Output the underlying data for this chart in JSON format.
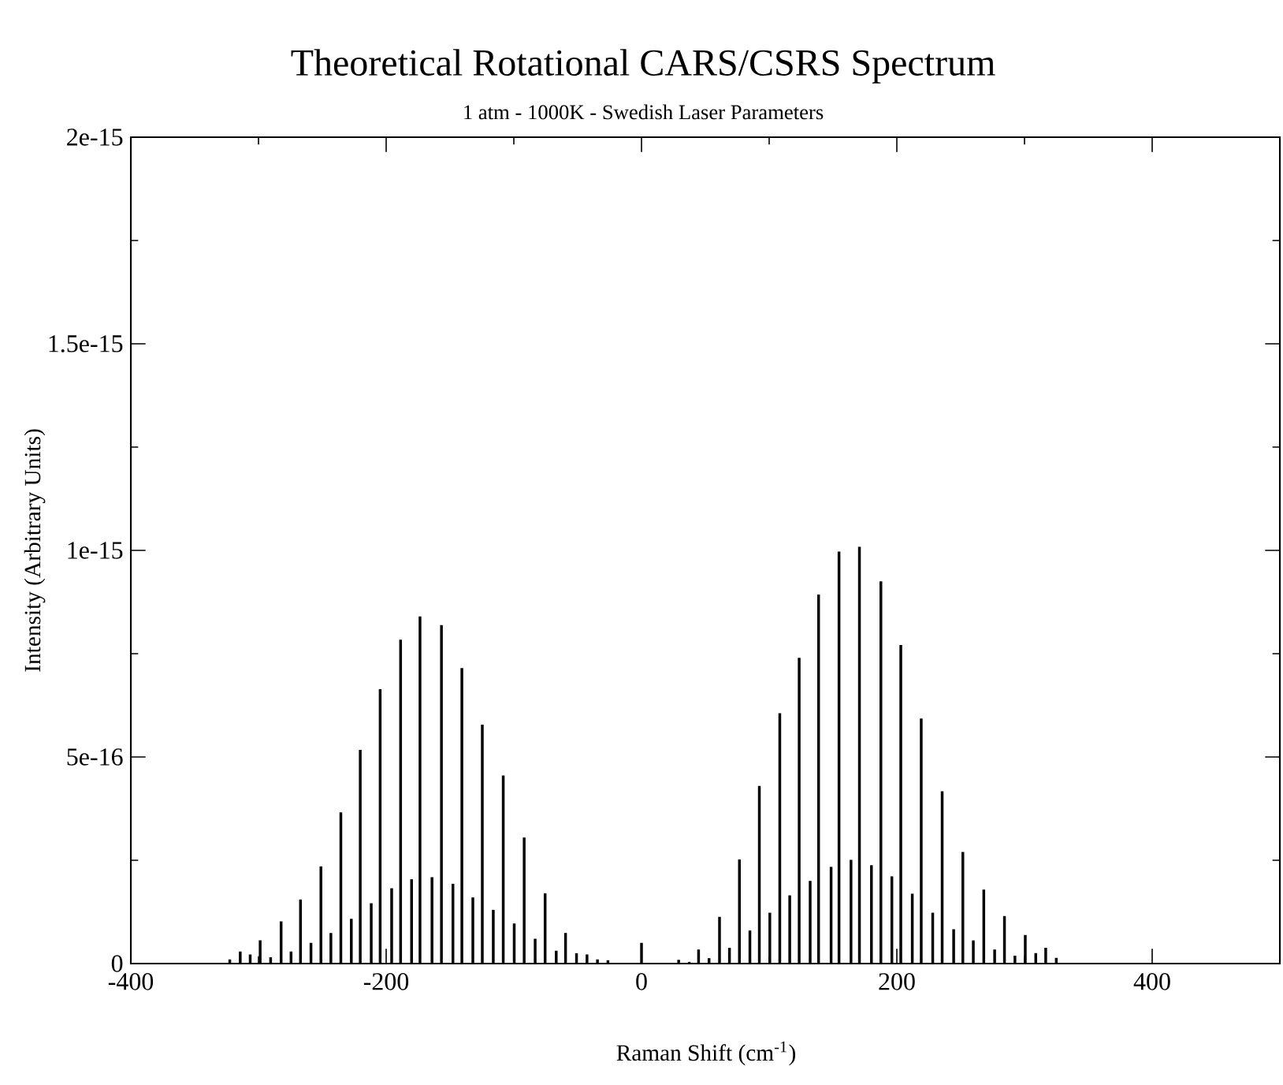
{
  "chart_data": {
    "type": "bar",
    "title": "Theoretical Rotational CARS/CSRS Spectrum",
    "subtitle": "1 atm - 1000K - Swedish Laser Parameters",
    "xlabel": "Raman Shift (cm$^{-1}$)",
    "ylabel": "Intensity (Arbitrary Units)",
    "color": "#000000",
    "x": [
      -322.5,
      -314.3,
      -306.5,
      -298.7,
      -290.5,
      -282.3,
      -274.5,
      -267.1,
      -258.9,
      -251.1,
      -243.3,
      -235.5,
      -227.3,
      -220.3,
      -211.7,
      -204.7,
      -195.7,
      -188.7,
      -180.1,
      -173.5,
      -164.1,
      -156.7,
      -147.7,
      -140.7,
      -132.1,
      -124.7,
      -116.1,
      -108.3,
      -99.7,
      -91.9,
      -83.3,
      -75.5,
      -66.8,
      -59.5,
      -50.9,
      -42.7,
      -34.5,
      -26.3,
      0,
      29.1,
      37.4,
      44.7,
      52.9,
      61.1,
      68.9,
      76.7,
      84.9,
      92.3,
      100.5,
      108.3,
      116.1,
      123.5,
      132.1,
      138.7,
      148.5,
      154.7,
      164.1,
      170.7,
      180.1,
      187.5,
      196.1,
      203.1,
      212.1,
      219.1,
      228.1,
      235.5,
      244.5,
      251.7,
      259.9,
      268.1,
      276.6,
      284.3,
      292.5,
      300.6,
      308.8,
      316.6,
      324.9
    ],
    "values": [
      1e-17,
      2.9e-17,
      2.2e-17,
      5.6e-17,
      1.5e-17,
      1.02e-16,
      2.9e-17,
      1.55e-16,
      5e-17,
      2.35e-16,
      7.4e-17,
      3.66e-16,
      1.08e-16,
      5.17e-16,
      1.46e-16,
      6.64e-16,
      1.82e-16,
      7.84e-16,
      2.04e-16,
      8.4e-16,
      2.09e-16,
      8.19e-16,
      1.93e-16,
      7.15e-16,
      1.6e-16,
      5.78e-16,
      1.3e-16,
      4.55e-16,
      9.7e-17,
      3.05e-16,
      6e-17,
      1.7e-16,
      3.1e-17,
      7.4e-17,
      2.5e-17,
      2.2e-17,
      1e-17,
      8e-18,
      5e-17,
      9e-18,
      4e-18,
      3.4e-17,
      1.3e-17,
      1.13e-16,
      3.8e-17,
      2.52e-16,
      8e-17,
      4.3e-16,
      1.23e-16,
      6.06e-16,
      1.65e-16,
      7.4e-16,
      2e-16,
      8.93e-16,
      2.34e-16,
      9.97e-16,
      2.51e-16,
      1.009e-15,
      2.38e-16,
      9.25e-16,
      2.11e-16,
      7.71e-16,
      1.69e-16,
      5.93e-16,
      1.23e-16,
      4.17e-16,
      8.3e-17,
      2.7e-16,
      5.6e-17,
      1.79e-16,
      3.4e-17,
      1.15e-16,
      1.9e-17,
      6.9e-17,
      2.5e-17,
      3.8e-17,
      1.4e-17
    ],
    "xlim": [
      -400,
      500
    ],
    "ylim": [
      0,
      2e-15
    ],
    "xticks": [
      -400,
      -200,
      0,
      200,
      400,
      {
        "value": -300,
        "label": null
      },
      {
        "value": -100,
        "label": null
      },
      {
        "value": 100,
        "label": null
      },
      {
        "value": 300,
        "label": null
      }
    ],
    "yticks": [
      0,
      {
        "value": 5e-16,
        "label": "5e-16"
      },
      {
        "value": 1e-15,
        "label": "1e-15"
      },
      {
        "value": 1.5e-15,
        "label": "1.5e-15"
      },
      {
        "value": 2e-15,
        "label": "2e-15"
      },
      {
        "value": 2.5e-16,
        "label": null
      },
      {
        "value": 7.5e-16,
        "label": null
      },
      {
        "value": 1.25e-15,
        "label": null
      },
      {
        "value": 1.75e-15,
        "label": null
      }
    ]
  }
}
